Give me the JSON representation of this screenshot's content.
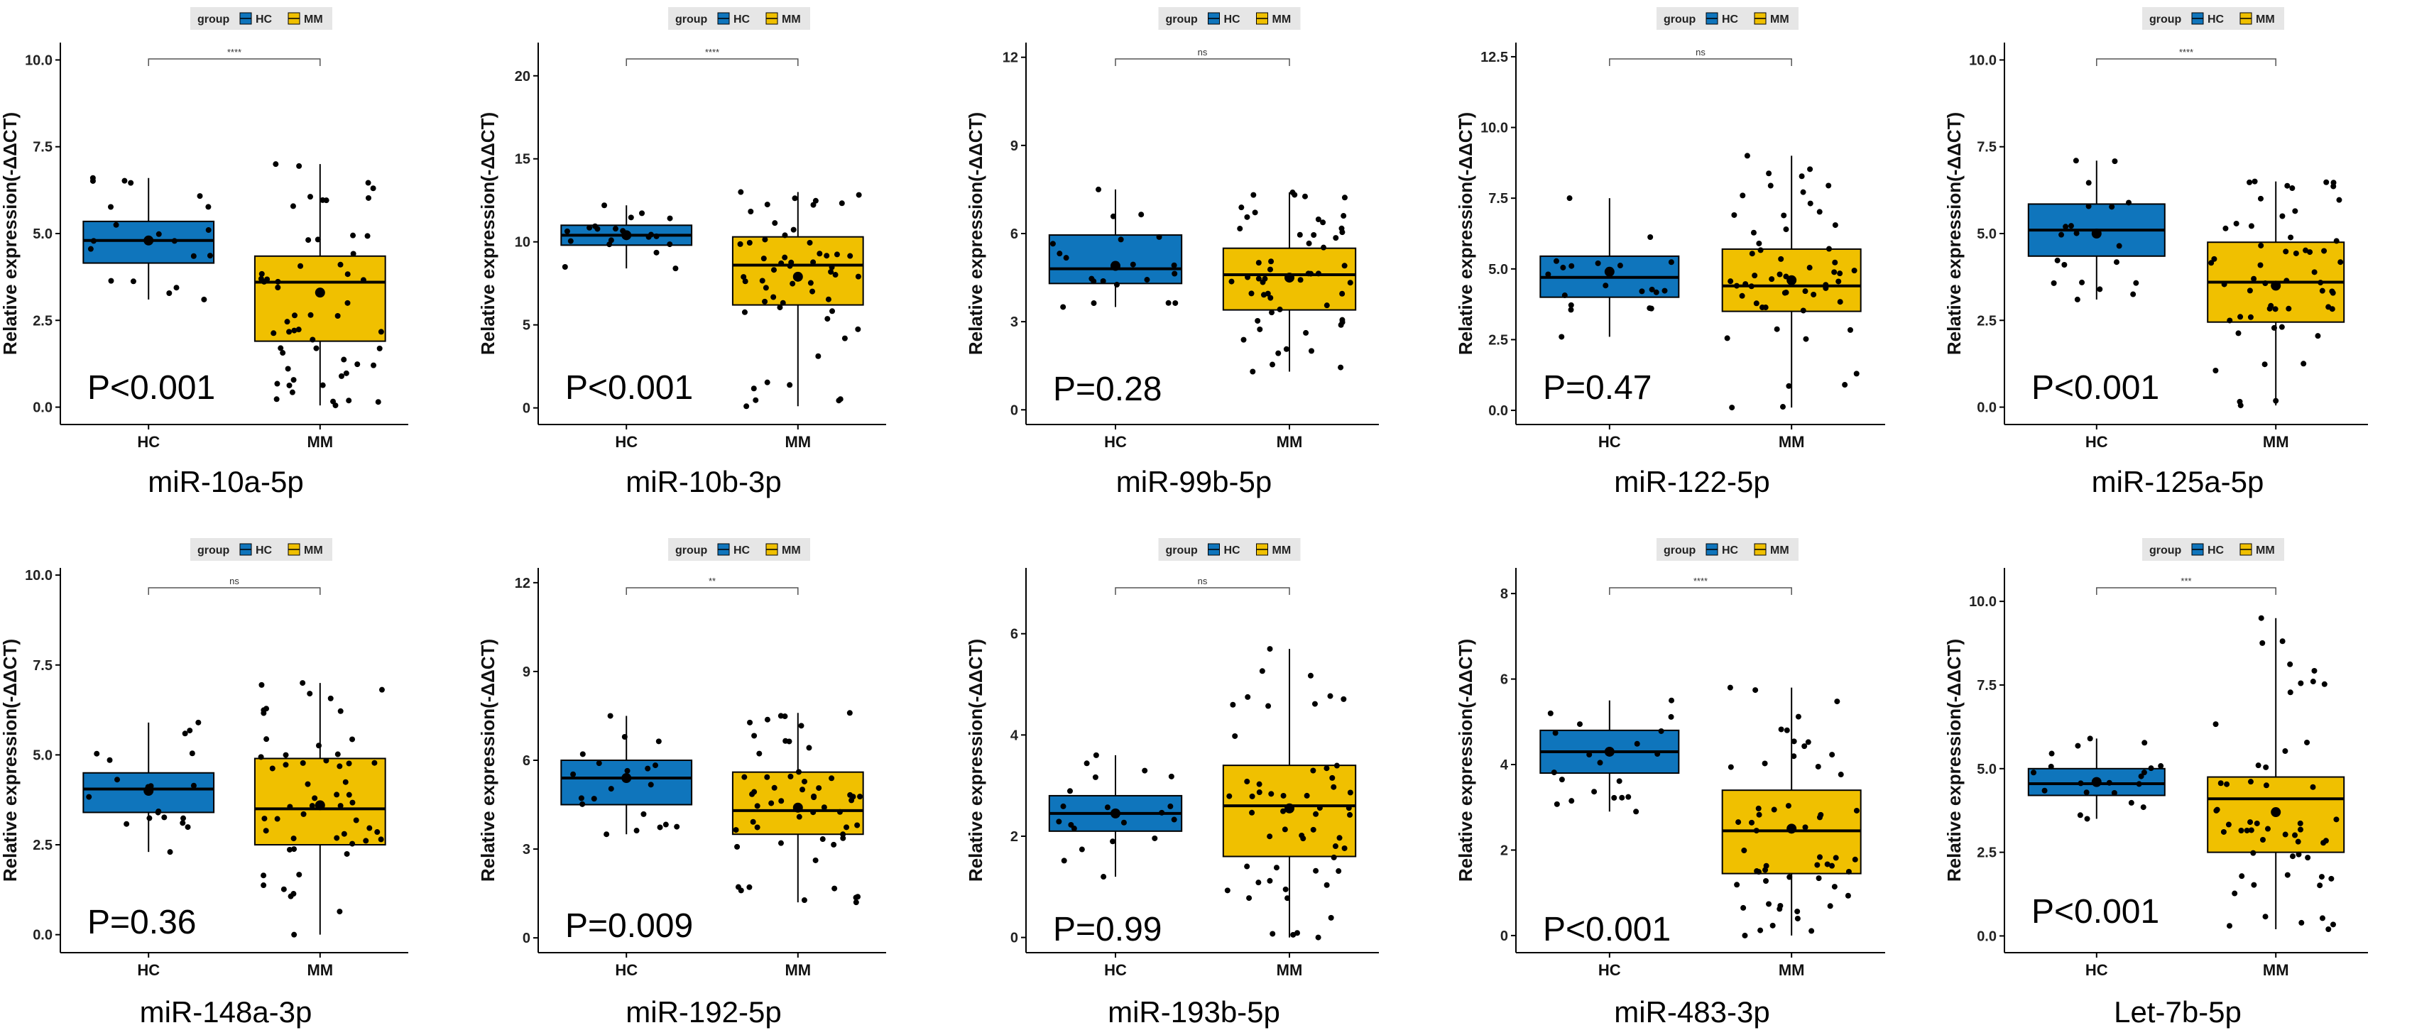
{
  "legend": {
    "title": "group",
    "items": [
      "HC",
      "MM"
    ]
  },
  "colors": {
    "HC": "#0f75bc",
    "MM": "#f0c000"
  },
  "chart_data": [
    {
      "type": "box",
      "title": "miR-10a-5p",
      "ylabel": "Relative expression(-ΔΔCT)",
      "categories": [
        "HC",
        "MM"
      ],
      "ylim": [
        -0.5,
        10.5
      ],
      "yticks": [
        "0.0",
        "2.5",
        "5.0",
        "7.5",
        "10.0"
      ],
      "yticks_values": [
        0,
        2.5,
        5,
        7.5,
        10
      ],
      "significance": "****",
      "p_value": "P<0.001",
      "series": [
        {
          "name": "HC",
          "q1": 4.15,
          "median": 4.8,
          "q3": 5.35,
          "whisker_low": 3.1,
          "whisker_high": 6.6,
          "mean": 4.8
        },
        {
          "name": "MM",
          "q1": 1.9,
          "median": 3.6,
          "q3": 4.35,
          "whisker_low": 0.05,
          "whisker_high": 7.0,
          "mean": 3.3
        }
      ]
    },
    {
      "type": "box",
      "title": "miR-10b-3p",
      "ylabel": "Relative expression(-ΔΔCT)",
      "categories": [
        "HC",
        "MM"
      ],
      "ylim": [
        -1,
        22
      ],
      "yticks": [
        "0",
        "5",
        "10",
        "15",
        "20"
      ],
      "yticks_values": [
        0,
        5,
        10,
        15,
        20
      ],
      "significance": "****",
      "p_value": "P<0.001",
      "series": [
        {
          "name": "HC",
          "q1": 9.8,
          "median": 10.4,
          "q3": 11.0,
          "whisker_low": 8.4,
          "whisker_high": 12.2,
          "mean": 10.4
        },
        {
          "name": "MM",
          "q1": 6.2,
          "median": 8.6,
          "q3": 10.3,
          "whisker_low": 0.1,
          "whisker_high": 13.0,
          "mean": 7.9
        }
      ]
    },
    {
      "type": "box",
      "title": "miR-99b-5p",
      "ylabel": "Relative expression(-ΔΔCT)",
      "categories": [
        "HC",
        "MM"
      ],
      "ylim": [
        -0.5,
        12.5
      ],
      "yticks": [
        "0",
        "3",
        "6",
        "9",
        "12"
      ],
      "yticks_values": [
        0,
        3,
        6,
        9,
        12
      ],
      "significance": "ns",
      "p_value": "P=0.28",
      "series": [
        {
          "name": "HC",
          "q1": 4.3,
          "median": 4.8,
          "q3": 5.95,
          "whisker_low": 3.5,
          "whisker_high": 7.5,
          "mean": 4.9
        },
        {
          "name": "MM",
          "q1": 3.4,
          "median": 4.6,
          "q3": 5.5,
          "whisker_low": 1.3,
          "whisker_high": 7.4,
          "mean": 4.5
        }
      ]
    },
    {
      "type": "box",
      "title": "miR-122-5p",
      "ylabel": "Relative expression(-ΔΔCT)",
      "categories": [
        "HC",
        "MM"
      ],
      "ylim": [
        -0.5,
        13
      ],
      "yticks": [
        "0.0",
        "2.5",
        "5.0",
        "7.5",
        "10.0",
        "12.5"
      ],
      "yticks_values": [
        0,
        2.5,
        5,
        7.5,
        10,
        12.5
      ],
      "significance": "ns",
      "p_value": "P=0.47",
      "series": [
        {
          "name": "HC",
          "q1": 4.0,
          "median": 4.7,
          "q3": 5.45,
          "whisker_low": 2.6,
          "whisker_high": 7.5,
          "mean": 4.9
        },
        {
          "name": "MM",
          "q1": 3.5,
          "median": 4.4,
          "q3": 5.7,
          "whisker_low": 0.1,
          "whisker_high": 9.0,
          "mean": 4.6
        }
      ]
    },
    {
      "type": "box",
      "title": "miR-125a-5p",
      "ylabel": "Relative expression(-ΔΔCT)",
      "categories": [
        "HC",
        "MM"
      ],
      "ylim": [
        -0.5,
        10.5
      ],
      "yticks": [
        "0.0",
        "2.5",
        "5.0",
        "7.5",
        "10.0"
      ],
      "yticks_values": [
        0,
        2.5,
        5,
        7.5,
        10
      ],
      "significance": "****",
      "p_value": "P<0.001",
      "series": [
        {
          "name": "HC",
          "q1": 4.35,
          "median": 5.1,
          "q3": 5.85,
          "whisker_low": 3.1,
          "whisker_high": 7.1,
          "mean": 5.0
        },
        {
          "name": "MM",
          "q1": 2.45,
          "median": 3.6,
          "q3": 4.75,
          "whisker_low": 0.05,
          "whisker_high": 6.5,
          "mean": 3.5
        }
      ]
    },
    {
      "type": "box",
      "title": "miR-148a-3p",
      "ylabel": "Relative expression(-ΔΔCT)",
      "categories": [
        "HC",
        "MM"
      ],
      "ylim": [
        -0.5,
        10.2
      ],
      "yticks": [
        "0.0",
        "2.5",
        "5.0",
        "7.5",
        "10.0"
      ],
      "yticks_values": [
        0,
        2.5,
        5,
        7.5,
        10
      ],
      "significance": "ns",
      "p_value": "P=0.36",
      "series": [
        {
          "name": "HC",
          "q1": 3.4,
          "median": 4.05,
          "q3": 4.5,
          "whisker_low": 2.3,
          "whisker_high": 5.9,
          "mean": 4.0
        },
        {
          "name": "MM",
          "q1": 2.5,
          "median": 3.5,
          "q3": 4.9,
          "whisker_low": 0.0,
          "whisker_high": 7.0,
          "mean": 3.6
        }
      ]
    },
    {
      "type": "box",
      "title": "miR-192-5p",
      "ylabel": "Relative expression(-ΔΔCT)",
      "categories": [
        "HC",
        "MM"
      ],
      "ylim": [
        -0.5,
        12.5
      ],
      "yticks": [
        "0",
        "3",
        "6",
        "9",
        "12"
      ],
      "yticks_values": [
        0,
        3,
        6,
        9,
        12
      ],
      "significance": "**",
      "p_value": "P=0.009",
      "series": [
        {
          "name": "HC",
          "q1": 4.5,
          "median": 5.4,
          "q3": 6.0,
          "whisker_low": 3.5,
          "whisker_high": 7.5,
          "mean": 5.4
        },
        {
          "name": "MM",
          "q1": 3.5,
          "median": 4.3,
          "q3": 5.6,
          "whisker_low": 1.2,
          "whisker_high": 7.6,
          "mean": 4.4
        }
      ]
    },
    {
      "type": "box",
      "title": "miR-193b-5p",
      "ylabel": "Relative expression(-ΔΔCT)",
      "categories": [
        "HC",
        "MM"
      ],
      "ylim": [
        -0.3,
        7.3
      ],
      "yticks": [
        "0",
        "2",
        "4",
        "6"
      ],
      "yticks_values": [
        0,
        2,
        4,
        6
      ],
      "significance": "ns",
      "p_value": "P=0.99",
      "series": [
        {
          "name": "HC",
          "q1": 2.1,
          "median": 2.45,
          "q3": 2.8,
          "whisker_low": 1.2,
          "whisker_high": 3.6,
          "mean": 2.45
        },
        {
          "name": "MM",
          "q1": 1.6,
          "median": 2.6,
          "q3": 3.4,
          "whisker_low": 0.0,
          "whisker_high": 5.7,
          "mean": 2.55
        }
      ]
    },
    {
      "type": "box",
      "title": "miR-483-3p",
      "ylabel": "Relative expression(-ΔΔCT)",
      "categories": [
        "HC",
        "MM"
      ],
      "ylim": [
        -0.4,
        8.6
      ],
      "yticks": [
        "0",
        "2",
        "4",
        "6",
        "8"
      ],
      "yticks_values": [
        0,
        2,
        4,
        6,
        8
      ],
      "significance": "****",
      "p_value": "P<0.001",
      "series": [
        {
          "name": "HC",
          "q1": 3.8,
          "median": 4.3,
          "q3": 4.8,
          "whisker_low": 2.9,
          "whisker_high": 5.5,
          "mean": 4.3
        },
        {
          "name": "MM",
          "q1": 1.45,
          "median": 2.45,
          "q3": 3.4,
          "whisker_low": 0.0,
          "whisker_high": 5.8,
          "mean": 2.5
        }
      ]
    },
    {
      "type": "box",
      "title": "Let-7b-5p",
      "ylabel": "Relative expression(-ΔΔCT)",
      "categories": [
        "HC",
        "MM"
      ],
      "ylim": [
        -0.5,
        11
      ],
      "yticks": [
        "0.0",
        "2.5",
        "5.0",
        "7.5",
        "10.0"
      ],
      "yticks_values": [
        0,
        2.5,
        5,
        7.5,
        10
      ],
      "significance": "***",
      "p_value": "P<0.001",
      "series": [
        {
          "name": "HC",
          "q1": 4.2,
          "median": 4.55,
          "q3": 5.0,
          "whisker_low": 3.5,
          "whisker_high": 5.9,
          "mean": 4.6
        },
        {
          "name": "MM",
          "q1": 2.5,
          "median": 4.1,
          "q3": 4.75,
          "whisker_low": 0.2,
          "whisker_high": 9.5,
          "mean": 3.7
        }
      ]
    }
  ]
}
